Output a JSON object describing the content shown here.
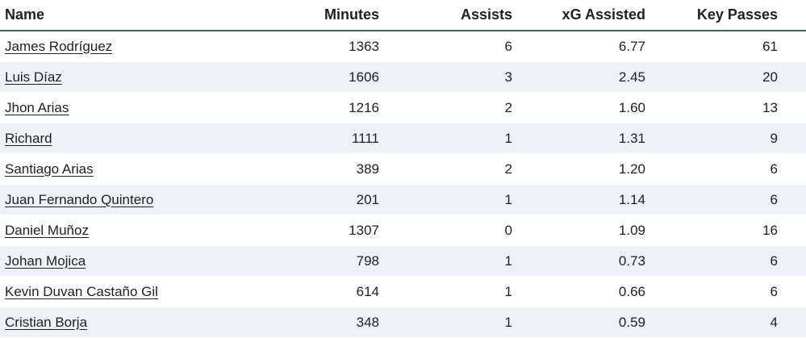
{
  "table": {
    "headers": {
      "name": "Name",
      "minutes": "Minutes",
      "assists": "Assists",
      "xg_assisted": "xG Assisted",
      "key_passes": "Key Passes"
    },
    "rows": [
      {
        "name": "James Rodríguez",
        "minutes": "1363",
        "assists": "6",
        "xg_assisted": "6.77",
        "key_passes": "61"
      },
      {
        "name": "Luis Díaz",
        "minutes": "1606",
        "assists": "3",
        "xg_assisted": "2.45",
        "key_passes": "20"
      },
      {
        "name": "Jhon Arias",
        "minutes": "1216",
        "assists": "2",
        "xg_assisted": "1.60",
        "key_passes": "13"
      },
      {
        "name": "Richard",
        "minutes": "1111",
        "assists": "1",
        "xg_assisted": "1.31",
        "key_passes": "9"
      },
      {
        "name": "Santiago Arias",
        "minutes": "389",
        "assists": "2",
        "xg_assisted": "1.20",
        "key_passes": "6"
      },
      {
        "name": "Juan Fernando Quintero",
        "minutes": "201",
        "assists": "1",
        "xg_assisted": "1.14",
        "key_passes": "6"
      },
      {
        "name": "Daniel Muñoz",
        "minutes": "1307",
        "assists": "0",
        "xg_assisted": "1.09",
        "key_passes": "16"
      },
      {
        "name": "Johan Mojica",
        "minutes": "798",
        "assists": "1",
        "xg_assisted": "0.73",
        "key_passes": "6"
      },
      {
        "name": "Kevin Duvan Castaño Gil",
        "minutes": "614",
        "assists": "1",
        "xg_assisted": "0.66",
        "key_passes": "6"
      },
      {
        "name": "Cristian Borja",
        "minutes": "348",
        "assists": "1",
        "xg_assisted": "0.59",
        "key_passes": "4"
      }
    ]
  }
}
